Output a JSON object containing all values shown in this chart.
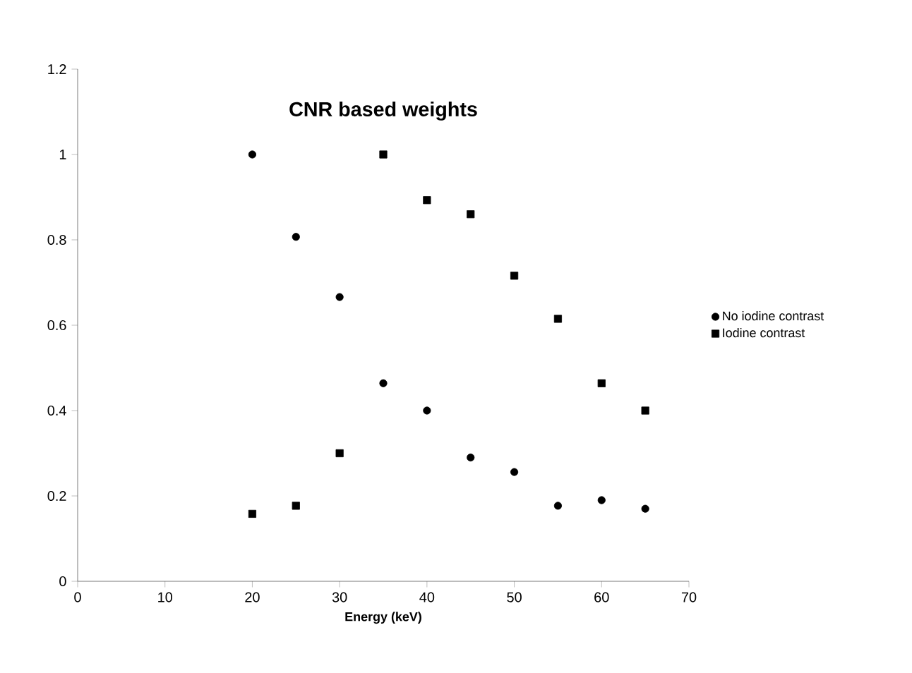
{
  "chart_data": {
    "type": "scatter",
    "title": "**CNR based weights**",
    "xlabel": "**Energy (keV)**",
    "xlim": [
      0,
      70
    ],
    "xticks": [
      0,
      10,
      20,
      30,
      40,
      50,
      60,
      70
    ],
    "ylim": [
      0,
      1.2
    ],
    "yticks": [
      0,
      0.2,
      0.4,
      0.6,
      0.8,
      1,
      1.2
    ],
    "x": [
      20,
      25,
      30,
      35,
      40,
      45,
      50,
      55,
      60,
      65
    ],
    "legend": "right",
    "grid": false,
    "series": [
      {
        "name": "No iodine contrast",
        "color": "#000000",
        "marker": "circle",
        "values": [
          1.0,
          0.807,
          0.666,
          0.464,
          0.4,
          0.29,
          0.256,
          0.177,
          0.19,
          0.17
        ]
      },
      {
        "name": "Iodine contrast",
        "color": "#000000",
        "marker": "square",
        "values": [
          0.158,
          0.177,
          0.3,
          1.0,
          0.893,
          0.86,
          0.716,
          0.615,
          0.464,
          0.4
        ]
      }
    ]
  }
}
